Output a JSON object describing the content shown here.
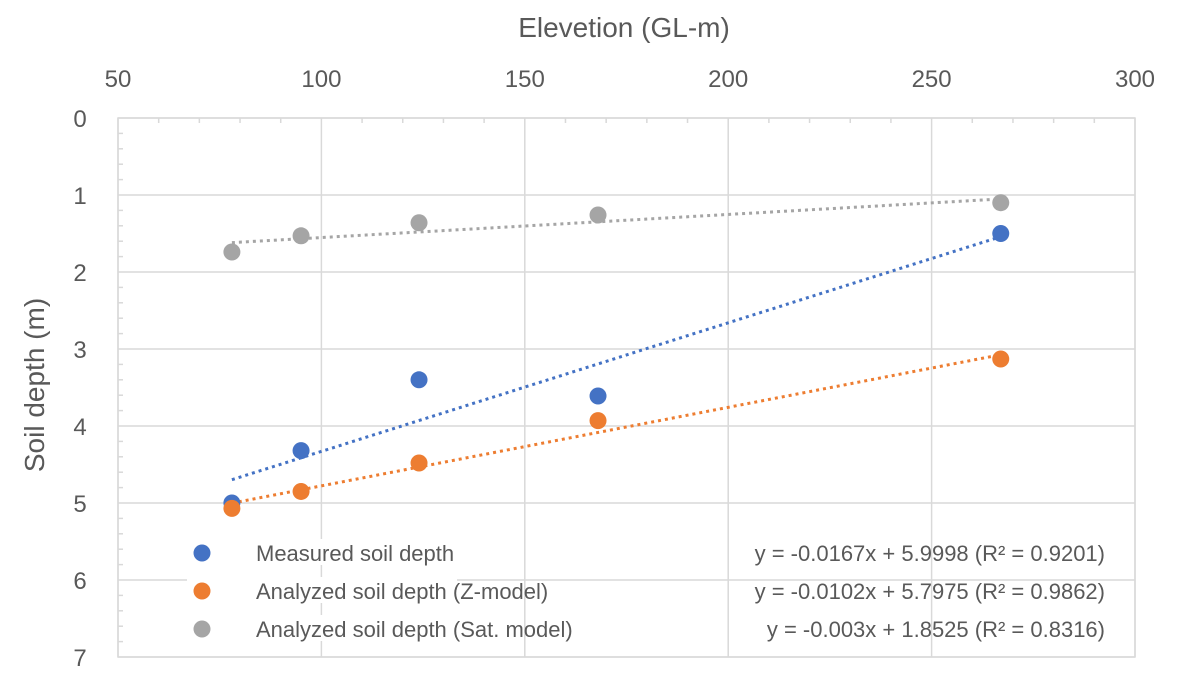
{
  "chart_data": {
    "type": "scatter",
    "xlabel": "Elevetion (GL-m)",
    "ylabel": "Soil depth (m)",
    "xlim": [
      50,
      300
    ],
    "ylim": [
      0,
      7
    ],
    "y_inverted": true,
    "x_axis_position": "top",
    "xticks": [
      "50",
      "100",
      "150",
      "200",
      "250",
      "300"
    ],
    "yticks": [
      "0",
      "1",
      "2",
      "3",
      "4",
      "5",
      "6",
      "7"
    ],
    "grid": true,
    "legend_position": "bottom-left",
    "series": [
      {
        "name": "Measured soil depth",
        "color": "#4472C4",
        "points": [
          [
            78,
            5.0
          ],
          [
            95,
            4.32
          ],
          [
            124,
            3.4
          ],
          [
            168,
            3.61
          ],
          [
            267,
            1.5
          ]
        ],
        "trendline": {
          "slope": -0.0167,
          "intercept": 5.9998
        },
        "equation": "y = -0.0167x + 5.9998 (R² = 0.9201)"
      },
      {
        "name": "Analyzed soil depth (Z-model)",
        "color": "#ED7D31",
        "points": [
          [
            78,
            5.07
          ],
          [
            95,
            4.85
          ],
          [
            124,
            4.48
          ],
          [
            168,
            3.93
          ],
          [
            267,
            3.13
          ]
        ],
        "trendline": {
          "slope": -0.0102,
          "intercept": 5.7975
        },
        "equation": "y = -0.0102x + 5.7975 (R² = 0.9862)"
      },
      {
        "name": "Analyzed soil depth (Sat. model)",
        "color": "#A5A5A5",
        "points": [
          [
            78,
            1.74
          ],
          [
            95,
            1.53
          ],
          [
            124,
            1.36
          ],
          [
            168,
            1.26
          ],
          [
            267,
            1.1
          ]
        ],
        "trendline": {
          "slope": -0.003,
          "intercept": 1.8525
        },
        "equation": "y = -0.003x + 1.8525 (R² = 0.8316)"
      }
    ]
  }
}
